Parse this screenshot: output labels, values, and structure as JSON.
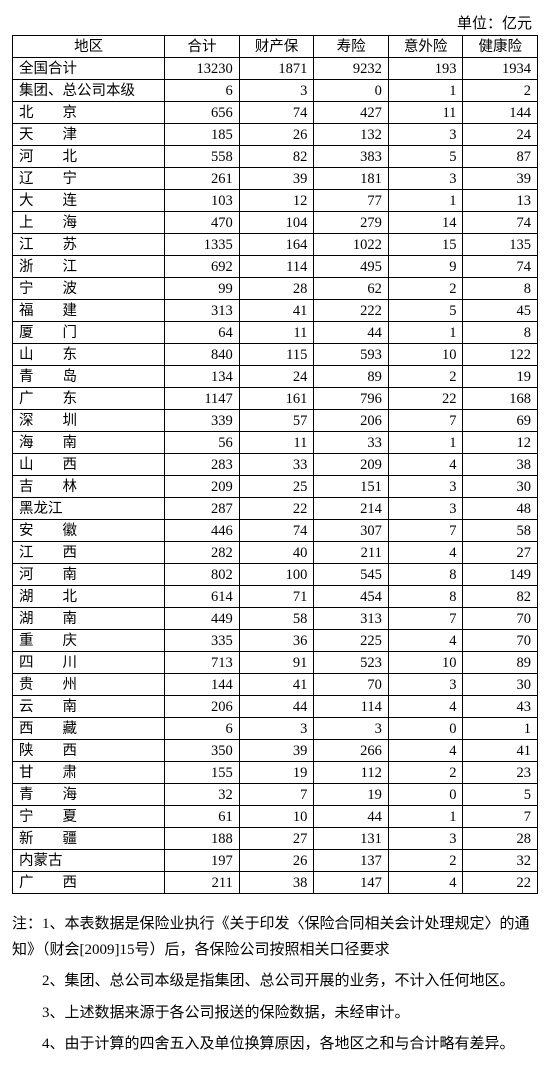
{
  "unit_label": "单位：亿元",
  "table": {
    "columns": [
      "地区",
      "合计",
      "财产保",
      "寿险",
      "意外险",
      "健康险"
    ],
    "col_widths_pct": [
      29,
      14.2,
      14.2,
      14.2,
      14.2,
      14.2
    ],
    "border_color": "#000000",
    "background_color": "#ffffff",
    "text_color": "#000000",
    "font_size_pt": 11,
    "rows": [
      {
        "region": "全国合计",
        "vals": [
          "13230",
          "1871",
          "9232",
          "193",
          "1934"
        ]
      },
      {
        "region": "集团、总公司本级",
        "vals": [
          "6",
          "3",
          "0",
          "1",
          "2"
        ]
      },
      {
        "region": "北　　京",
        "vals": [
          "656",
          "74",
          "427",
          "11",
          "144"
        ]
      },
      {
        "region": "天　　津",
        "vals": [
          "185",
          "26",
          "132",
          "3",
          "24"
        ]
      },
      {
        "region": "河　　北",
        "vals": [
          "558",
          "82",
          "383",
          "5",
          "87"
        ]
      },
      {
        "region": "辽　　宁",
        "vals": [
          "261",
          "39",
          "181",
          "3",
          "39"
        ]
      },
      {
        "region": "大　　连",
        "vals": [
          "103",
          "12",
          "77",
          "1",
          "13"
        ]
      },
      {
        "region": "上　　海",
        "vals": [
          "470",
          "104",
          "279",
          "14",
          "74"
        ]
      },
      {
        "region": "江　　苏",
        "vals": [
          "1335",
          "164",
          "1022",
          "15",
          "135"
        ]
      },
      {
        "region": "浙　　江",
        "vals": [
          "692",
          "114",
          "495",
          "9",
          "74"
        ]
      },
      {
        "region": "宁　　波",
        "vals": [
          "99",
          "28",
          "62",
          "2",
          "8"
        ]
      },
      {
        "region": "福　　建",
        "vals": [
          "313",
          "41",
          "222",
          "5",
          "45"
        ]
      },
      {
        "region": "厦　　门",
        "vals": [
          "64",
          "11",
          "44",
          "1",
          "8"
        ]
      },
      {
        "region": "山　　东",
        "vals": [
          "840",
          "115",
          "593",
          "10",
          "122"
        ]
      },
      {
        "region": "青　　岛",
        "vals": [
          "134",
          "24",
          "89",
          "2",
          "19"
        ]
      },
      {
        "region": "广　　东",
        "vals": [
          "1147",
          "161",
          "796",
          "22",
          "168"
        ]
      },
      {
        "region": "深　　圳",
        "vals": [
          "339",
          "57",
          "206",
          "7",
          "69"
        ]
      },
      {
        "region": "海　　南",
        "vals": [
          "56",
          "11",
          "33",
          "1",
          "12"
        ]
      },
      {
        "region": "山　　西",
        "vals": [
          "283",
          "33",
          "209",
          "4",
          "38"
        ]
      },
      {
        "region": "吉　　林",
        "vals": [
          "209",
          "25",
          "151",
          "3",
          "30"
        ]
      },
      {
        "region": "黑龙江",
        "vals": [
          "287",
          "22",
          "214",
          "3",
          "48"
        ]
      },
      {
        "region": "安　　徽",
        "vals": [
          "446",
          "74",
          "307",
          "7",
          "58"
        ]
      },
      {
        "region": "江　　西",
        "vals": [
          "282",
          "40",
          "211",
          "4",
          "27"
        ]
      },
      {
        "region": "河　　南",
        "vals": [
          "802",
          "100",
          "545",
          "8",
          "149"
        ]
      },
      {
        "region": "湖　　北",
        "vals": [
          "614",
          "71",
          "454",
          "8",
          "82"
        ]
      },
      {
        "region": "湖　　南",
        "vals": [
          "449",
          "58",
          "313",
          "7",
          "70"
        ]
      },
      {
        "region": "重　　庆",
        "vals": [
          "335",
          "36",
          "225",
          "4",
          "70"
        ]
      },
      {
        "region": "四　　川",
        "vals": [
          "713",
          "91",
          "523",
          "10",
          "89"
        ]
      },
      {
        "region": "贵　　州",
        "vals": [
          "144",
          "41",
          "70",
          "3",
          "30"
        ]
      },
      {
        "region": "云　　南",
        "vals": [
          "206",
          "44",
          "114",
          "4",
          "43"
        ]
      },
      {
        "region": "西　　藏",
        "vals": [
          "6",
          "3",
          "3",
          "0",
          "1"
        ]
      },
      {
        "region": "陕　　西",
        "vals": [
          "350",
          "39",
          "266",
          "4",
          "41"
        ]
      },
      {
        "region": "甘　　肃",
        "vals": [
          "155",
          "19",
          "112",
          "2",
          "23"
        ]
      },
      {
        "region": "青　　海",
        "vals": [
          "32",
          "7",
          "19",
          "0",
          "5"
        ]
      },
      {
        "region": "宁　　夏",
        "vals": [
          "61",
          "10",
          "44",
          "1",
          "7"
        ]
      },
      {
        "region": "新　　疆",
        "vals": [
          "188",
          "27",
          "131",
          "3",
          "28"
        ]
      },
      {
        "region": "内蒙古",
        "vals": [
          "197",
          "26",
          "137",
          "2",
          "32"
        ]
      },
      {
        "region": "广　　西",
        "vals": [
          "211",
          "38",
          "147",
          "4",
          "22"
        ]
      }
    ]
  },
  "notes": {
    "line1": "注：1、本表数据是保险业执行《关于印发〈保险合同相关会计处理规定〉的通知》（财会[2009]15号）后，各保险公司按照相关口径要求",
    "line2": "2、集团、总公司本级是指集团、总公司开展的业务，不计入任何地区。",
    "line3": "3、上述数据来源于各公司报送的保险数据，未经审计。",
    "line4": "4、由于计算的四舍五入及单位换算原因，各地区之和与合计略有差异。"
  }
}
